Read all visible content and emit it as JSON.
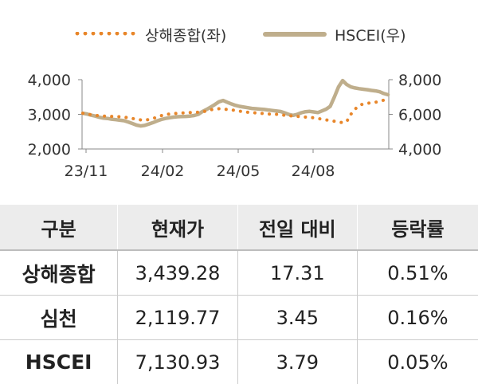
{
  "legend": {
    "series1": "상해종합(좌)",
    "series2": "HSCEI(우)"
  },
  "colors": {
    "series1": "#e8862a",
    "series2": "#bfae8c",
    "header_bg": "#ececec"
  },
  "chart_data": {
    "type": "line",
    "x_ticks": [
      "23/11",
      "24/02",
      "24/05",
      "24/08"
    ],
    "left_axis": {
      "ticks": [
        "4,000",
        "3,000",
        "2,000"
      ],
      "range": [
        2000,
        4000
      ]
    },
    "right_axis": {
      "ticks": [
        "8,000",
        "6,000",
        "4,000"
      ],
      "range": [
        4000,
        8000
      ]
    },
    "series": [
      {
        "name": "상해종합(좌)",
        "axis": "left",
        "style": "dotted",
        "values": [
          3030,
          3010,
          2990,
          2970,
          2960,
          2950,
          2950,
          2940,
          2930,
          2930,
          2920,
          2900,
          2880,
          2860,
          2840,
          2830,
          2850,
          2880,
          2920,
          2960,
          2990,
          3010,
          3020,
          3030,
          3040,
          3040,
          3050,
          3060,
          3060,
          3070,
          3100,
          3130,
          3150,
          3160,
          3150,
          3140,
          3130,
          3110,
          3090,
          3080,
          3060,
          3050,
          3040,
          3030,
          3020,
          3010,
          3000,
          3000,
          2990,
          2970,
          2960,
          2950,
          2940,
          2930,
          2920,
          2910,
          2900,
          2880,
          2860,
          2840,
          2820,
          2800,
          2780,
          2760,
          2790,
          3000,
          3150,
          3250,
          3300,
          3320,
          3330,
          3350,
          3380,
          3410,
          3440
        ],
        "step_days": 5
      },
      {
        "name": "HSCEI(우)",
        "axis": "right",
        "style": "solid",
        "values": [
          6060,
          6020,
          5950,
          5900,
          5830,
          5780,
          5760,
          5720,
          5690,
          5660,
          5630,
          5560,
          5470,
          5380,
          5330,
          5360,
          5440,
          5520,
          5620,
          5700,
          5760,
          5800,
          5840,
          5860,
          5870,
          5880,
          5900,
          5930,
          6000,
          6160,
          6280,
          6420,
          6560,
          6720,
          6800,
          6700,
          6600,
          6520,
          6460,
          6420,
          6380,
          6340,
          6320,
          6300,
          6280,
          6250,
          6220,
          6190,
          6160,
          6080,
          5990,
          5940,
          6000,
          6090,
          6150,
          6170,
          6140,
          6100,
          6200,
          6300,
          6460,
          7000,
          7580,
          7950,
          7720,
          7580,
          7520,
          7480,
          7450,
          7420,
          7380,
          7350,
          7300,
          7200,
          7130
        ],
        "step_days": 5
      }
    ]
  },
  "table": {
    "headers": [
      "구분",
      "현재가",
      "전일 대비",
      "등락률"
    ],
    "rows": [
      {
        "name": "상해종합",
        "price": "3,439.28",
        "change": "17.31",
        "rate": "0.51%"
      },
      {
        "name": "심천",
        "price": "2,119.77",
        "change": "3.45",
        "rate": "0.16%"
      },
      {
        "name": "HSCEI",
        "price": "7,130.93",
        "change": "3.79",
        "rate": "0.05%"
      }
    ]
  }
}
